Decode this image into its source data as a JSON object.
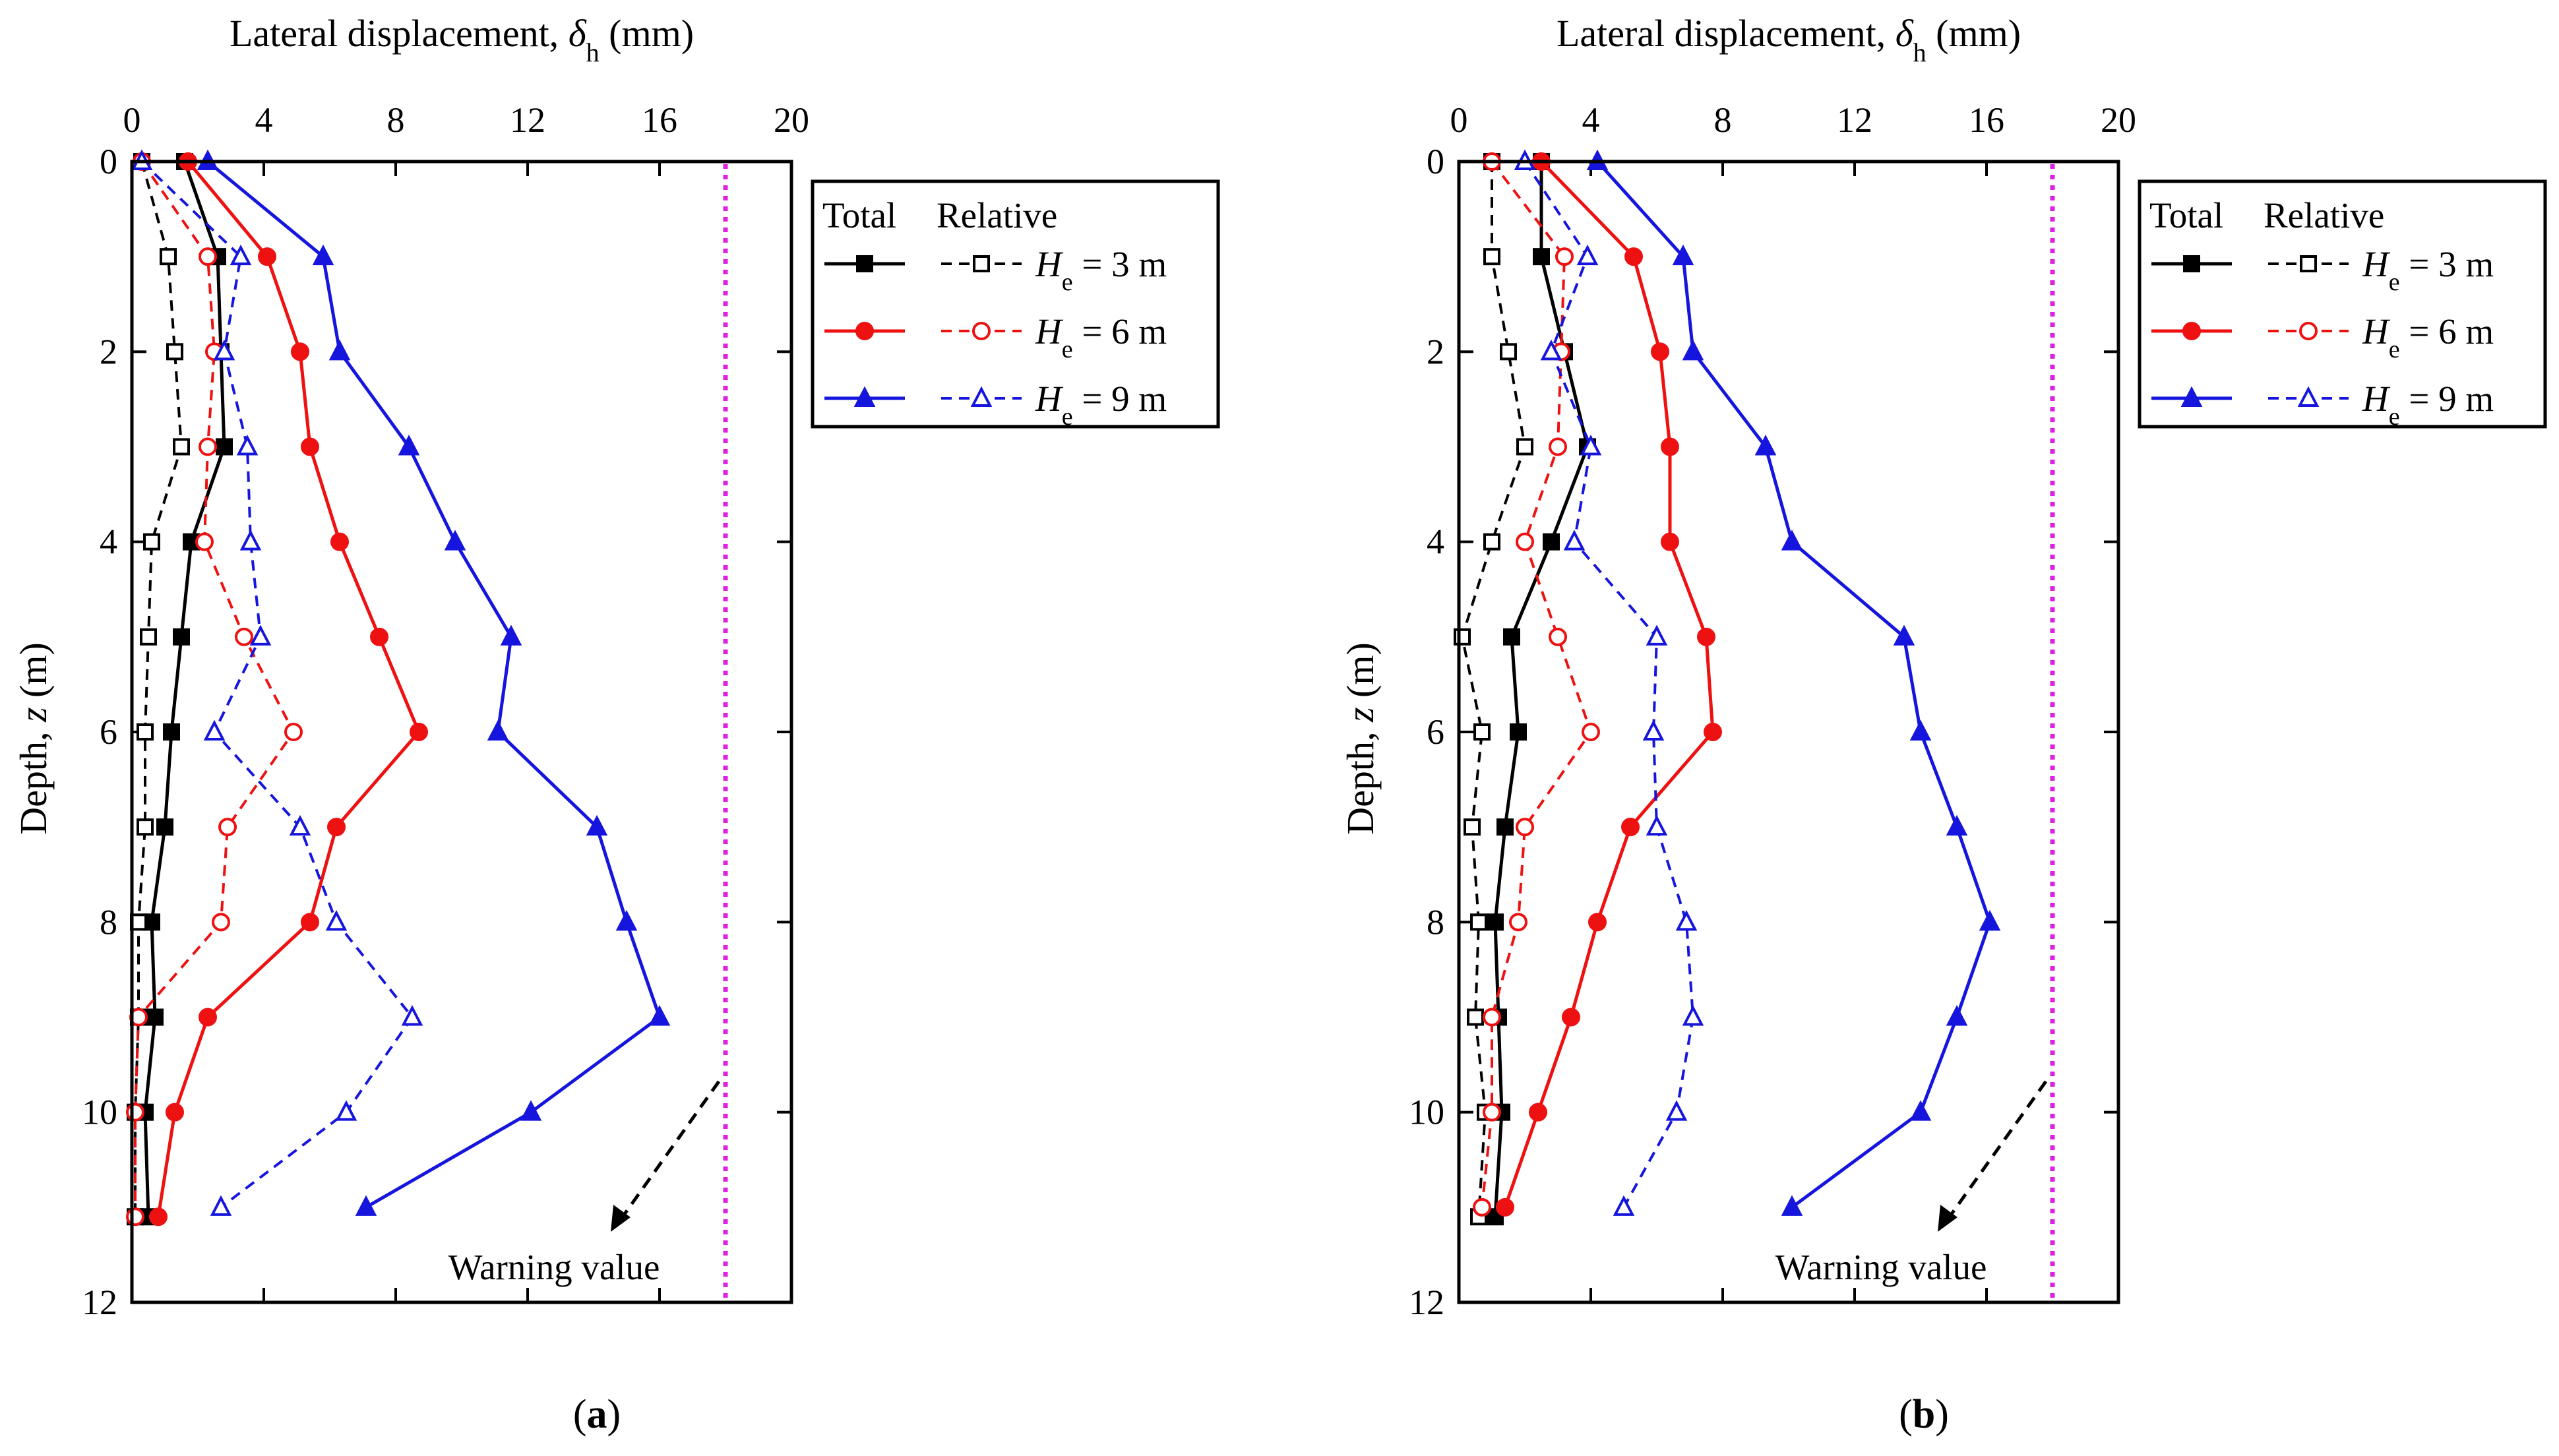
{
  "chart_data": [
    {
      "type": "line",
      "panel_label_open": "(",
      "panel_label": "a",
      "panel_label_close": ")",
      "title": "",
      "xlabel": "Lateral displacement, δh (mm)",
      "xlabel_prefix": "Lateral displacement, ",
      "xlabel_symbol": "δ",
      "xlabel_sub": "h",
      "xlabel_suffix": " (mm)",
      "ylabel": "Depth, z (m)",
      "ylabel_prefix": "Depth, ",
      "ylabel_symbol": "z",
      "ylabel_suffix": " (m)",
      "xlim": [
        0,
        20
      ],
      "ylim": [
        12,
        0
      ],
      "xticks": [
        "0",
        "4",
        "8",
        "12",
        "16",
        "20"
      ],
      "yticks": [
        "0",
        "2",
        "4",
        "6",
        "8",
        "10",
        "12"
      ],
      "legend_header_total": "Total",
      "legend_header_relative": "Relative",
      "legend_position": "top-right outside",
      "warning_value": 18,
      "warning_label": "Warning value",
      "series": [
        {
          "name": "He = 3 m total",
          "legend": "He = 3 m",
          "he": "3",
          "kind": "total",
          "color": "#000000",
          "marker": "square",
          "x": [
            1.6,
            2.6,
            2.7,
            2.8,
            1.8,
            1.5,
            1.2,
            1.0,
            0.6,
            0.7,
            0.4,
            0.5
          ],
          "y": [
            0,
            1,
            2,
            3,
            4,
            5,
            6,
            7,
            8,
            9,
            10,
            11.1
          ]
        },
        {
          "name": "He = 3 m relative",
          "legend": "He = 3 m",
          "he": "3",
          "kind": "relative",
          "color": "#000000",
          "marker": "square",
          "x": [
            0.3,
            1.1,
            1.3,
            1.5,
            0.6,
            0.5,
            0.4,
            0.4,
            0.2,
            0.2,
            0.1,
            0.1
          ],
          "y": [
            0,
            1,
            2,
            3,
            4,
            5,
            6,
            7,
            8,
            9,
            10,
            11.1
          ]
        },
        {
          "name": "He = 6 m total",
          "legend": "He = 6 m",
          "he": "6",
          "kind": "total",
          "color": "#ee1111",
          "marker": "circle",
          "x": [
            1.7,
            4.1,
            5.1,
            5.4,
            6.3,
            7.5,
            8.7,
            6.2,
            5.4,
            2.3,
            1.3,
            0.8
          ],
          "y": [
            0,
            1,
            2,
            3,
            4,
            5,
            6,
            7,
            8,
            9,
            10,
            11.1
          ]
        },
        {
          "name": "He = 6 m relative",
          "legend": "He = 6 m",
          "he": "6",
          "kind": "relative",
          "color": "#ee1111",
          "marker": "circle",
          "x": [
            0.3,
            2.3,
            2.5,
            2.3,
            2.2,
            3.4,
            4.9,
            2.9,
            2.7,
            0.2,
            0.1,
            0.1
          ],
          "y": [
            0,
            1,
            2,
            3,
            4,
            5,
            6,
            7,
            8,
            9,
            10,
            11.1
          ]
        },
        {
          "name": "He = 9 m total",
          "legend": "He = 9 m",
          "he": "9",
          "kind": "total",
          "color": "#1515dd",
          "marker": "triangle",
          "x": [
            2.3,
            5.8,
            6.3,
            8.4,
            9.8,
            11.5,
            11.1,
            14.1,
            15.0,
            16.0,
            12.1,
            7.1
          ],
          "y": [
            0,
            1,
            2,
            3,
            4,
            5,
            6,
            7,
            8,
            9,
            10,
            11
          ]
        },
        {
          "name": "He = 9 m relative",
          "legend": "He = 9 m",
          "he": "9",
          "kind": "relative",
          "color": "#1515dd",
          "marker": "triangle",
          "x": [
            0.3,
            3.3,
            2.8,
            3.5,
            3.6,
            3.9,
            2.5,
            5.1,
            6.2,
            8.5,
            6.5,
            2.7
          ],
          "y": [
            0,
            1,
            2,
            3,
            4,
            5,
            6,
            7,
            8,
            9,
            10,
            11
          ]
        }
      ]
    },
    {
      "type": "line",
      "panel_label_open": "(",
      "panel_label": "b",
      "panel_label_close": ")",
      "title": "",
      "xlabel": "Lateral displacement, δh (mm)",
      "xlabel_prefix": "Lateral displacement, ",
      "xlabel_symbol": "δ",
      "xlabel_sub": "h",
      "xlabel_suffix": " (mm)",
      "ylabel": "Depth, z (m)",
      "ylabel_prefix": "Depth, ",
      "ylabel_symbol": "z",
      "ylabel_suffix": " (m)",
      "xlim": [
        0,
        20
      ],
      "ylim": [
        12,
        0
      ],
      "xticks": [
        "0",
        "4",
        "8",
        "12",
        "16",
        "20"
      ],
      "yticks": [
        "0",
        "2",
        "4",
        "6",
        "8",
        "10",
        "12"
      ],
      "legend_header_total": "Total",
      "legend_header_relative": "Relative",
      "legend_position": "top-right outside",
      "warning_value": 18,
      "warning_label": "Warning value",
      "series": [
        {
          "name": "He = 3 m total",
          "legend": "He = 3 m",
          "he": "3",
          "kind": "total",
          "color": "#000000",
          "marker": "square",
          "x": [
            2.5,
            2.5,
            3.2,
            3.9,
            2.8,
            1.6,
            1.8,
            1.4,
            1.1,
            1.2,
            1.3,
            1.1
          ],
          "y": [
            0,
            1,
            2,
            3,
            4,
            5,
            6,
            7,
            8,
            9,
            10,
            11.1
          ]
        },
        {
          "name": "He = 3 m relative",
          "legend": "He = 3 m",
          "he": "3",
          "kind": "relative",
          "color": "#000000",
          "marker": "square",
          "x": [
            1.0,
            1.0,
            1.5,
            2.0,
            1.0,
            0.1,
            0.7,
            0.4,
            0.6,
            0.5,
            0.8,
            0.6
          ],
          "y": [
            0,
            1,
            2,
            3,
            4,
            5,
            6,
            7,
            8,
            9,
            10,
            11.1
          ]
        },
        {
          "name": "He = 6 m total",
          "legend": "He = 6 m",
          "he": "6",
          "kind": "total",
          "color": "#ee1111",
          "marker": "circle",
          "x": [
            2.5,
            5.3,
            6.1,
            6.4,
            6.4,
            7.5,
            7.7,
            5.2,
            4.2,
            3.4,
            2.4,
            1.4
          ],
          "y": [
            0,
            1,
            2,
            3,
            4,
            5,
            6,
            7,
            8,
            9,
            10,
            11
          ]
        },
        {
          "name": "He = 6 m relative",
          "legend": "He = 6 m",
          "he": "6",
          "kind": "relative",
          "color": "#ee1111",
          "marker": "circle",
          "x": [
            1.0,
            3.2,
            3.1,
            3.0,
            2.0,
            3.0,
            4.0,
            2.0,
            1.8,
            1.0,
            1.0,
            0.7
          ],
          "y": [
            0,
            1,
            2,
            3,
            4,
            5,
            6,
            7,
            8,
            9,
            10,
            11
          ]
        },
        {
          "name": "He = 9 m total",
          "legend": "He = 9 m",
          "he": "9",
          "kind": "total",
          "color": "#1515dd",
          "marker": "triangle",
          "x": [
            4.2,
            6.8,
            7.1,
            9.3,
            10.1,
            13.5,
            14.0,
            15.1,
            16.1,
            15.1,
            14.0,
            10.1
          ],
          "y": [
            0,
            1,
            2,
            3,
            4,
            5,
            6,
            7,
            8,
            9,
            10,
            11
          ]
        },
        {
          "name": "He = 9 m relative",
          "legend": "He = 9 m",
          "he": "9",
          "kind": "relative",
          "color": "#1515dd",
          "marker": "triangle",
          "x": [
            2.0,
            3.9,
            2.8,
            4.0,
            3.5,
            6.0,
            5.9,
            6.0,
            6.9,
            7.1,
            6.6,
            5.0
          ],
          "y": [
            0,
            1,
            2,
            3,
            4,
            5,
            6,
            7,
            8,
            9,
            10,
            11
          ]
        }
      ]
    }
  ]
}
